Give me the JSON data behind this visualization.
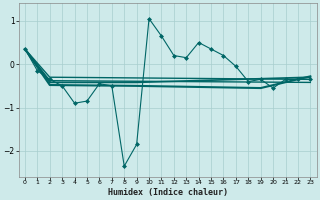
{
  "xlabel": "Humidex (Indice chaleur)",
  "ylabel": "",
  "bg_color": "#ceeaea",
  "line_color": "#006666",
  "grid_color": "#a8cece",
  "xlim": [
    -0.5,
    23.5
  ],
  "ylim": [
    -2.6,
    1.4
  ],
  "yticks": [
    -2,
    -1,
    0,
    1
  ],
  "xticks": [
    0,
    1,
    2,
    3,
    4,
    5,
    6,
    7,
    8,
    9,
    10,
    11,
    12,
    13,
    14,
    15,
    16,
    17,
    18,
    19,
    20,
    21,
    22,
    23
  ],
  "line1_x": [
    0,
    1,
    2,
    3,
    4,
    5,
    6,
    7,
    8,
    9,
    10,
    11,
    12,
    13,
    14,
    15,
    16,
    17,
    18,
    19,
    20,
    21,
    22,
    23
  ],
  "line1_y": [
    0.35,
    -0.15,
    -0.35,
    -0.5,
    -0.9,
    -0.85,
    -0.45,
    -0.5,
    -2.35,
    -1.85,
    1.05,
    0.65,
    0.2,
    0.15,
    0.5,
    0.35,
    0.2,
    -0.05,
    -0.4,
    -0.35,
    -0.55,
    -0.35,
    -0.35,
    -0.35
  ],
  "line2_x": [
    0,
    2,
    23
  ],
  "line2_y": [
    0.35,
    -0.3,
    -0.35
  ],
  "line3_x": [
    0,
    2,
    23
  ],
  "line3_y": [
    0.35,
    -0.38,
    -0.42
  ],
  "line4_x": [
    0,
    2,
    9,
    23
  ],
  "line4_y": [
    0.35,
    -0.42,
    -0.42,
    -0.3
  ],
  "line5_x": [
    0,
    2,
    9,
    19,
    23
  ],
  "line5_y": [
    0.35,
    -0.48,
    -0.5,
    -0.55,
    -0.28
  ]
}
